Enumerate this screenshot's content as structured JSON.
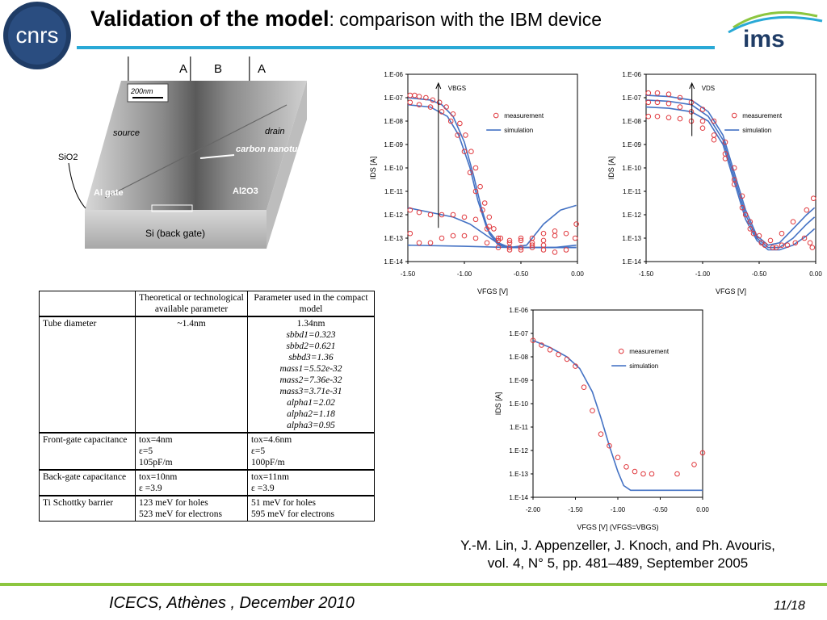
{
  "header": {
    "title_bold": "Validation of the model",
    "title_rest": ": comparison with the IBM device",
    "logo_left_text": "cnrs",
    "logo_right_text": "ims"
  },
  "device": {
    "region_labels": [
      "A",
      "B",
      "A"
    ],
    "scale_bar": "200nm",
    "source": "source",
    "drain": "drain",
    "nanotube": "carbon nanotube",
    "sio2": "SiO2",
    "al_gate": "Al gate",
    "al2o3": "Al2O3",
    "back_gate": "Si (back gate)"
  },
  "table": {
    "headers": [
      "",
      "Theoretical or technological available parameter",
      "Parameter used in the compact model"
    ],
    "rows": [
      {
        "param": "Tube diameter",
        "theory": [
          "~1.4nm"
        ],
        "model": [
          "1.34nm"
        ],
        "model_italic": [
          "sbbd1=0.323",
          "sbbd2=0.621",
          "sbbd3=1.36",
          "mass1=5.52e-32",
          "mass2=7.36e-32",
          "mass3=3.71e-31",
          "alpha1=2.02",
          "alpha2=1.18",
          "alpha3=0.95"
        ]
      },
      {
        "param": "Front-gate capacitance",
        "theory": [
          "tox=4nm",
          "ε=5",
          "105pF/m"
        ],
        "model": [
          "tox=4.6nm",
          "ε=5",
          "100pF/m"
        ]
      },
      {
        "param": "Back-gate capacitance",
        "theory": [
          "tox=10nm",
          "ε =3.9"
        ],
        "model": [
          "tox=11nm",
          "ε =3.9"
        ]
      },
      {
        "param": "Ti Schottky barrier",
        "theory": [
          "123 meV for holes",
          "523 meV for electrons"
        ],
        "model": [
          "51 meV for holes",
          "595 meV for electrons"
        ]
      }
    ]
  },
  "chart_data": [
    {
      "type": "scatter",
      "id": "vbgs",
      "ylabel": "IDS [A]",
      "xlabel": "VFGS [V]",
      "yscale": "log",
      "xlim": [
        -1.5,
        0.0
      ],
      "ylim_exp": [
        -14,
        -6
      ],
      "x_ticks": [
        "-1.50",
        "-1.00",
        "-0.50",
        "0.00"
      ],
      "y_ticks": [
        "1.E-06",
        "1.E-07",
        "1.E-08",
        "1.E-09",
        "1.E-10",
        "1.E-11",
        "1.E-12",
        "1.E-13",
        "1.E-14"
      ],
      "arrow_label": "VBGS",
      "legend": [
        "measurement",
        "simulation"
      ],
      "colors": {
        "measurement": "#e0393e",
        "simulation": "#4472c4"
      },
      "measurement": [
        {
          "x": -1.48,
          "y": -6.9
        },
        {
          "x": -1.44,
          "y": -6.9
        },
        {
          "x": -1.4,
          "y": -6.95
        },
        {
          "x": -1.34,
          "y": -7.0
        },
        {
          "x": -1.28,
          "y": -7.1
        },
        {
          "x": -1.22,
          "y": -7.2
        },
        {
          "x": -1.16,
          "y": -7.4
        },
        {
          "x": -1.1,
          "y": -7.7
        },
        {
          "x": -1.04,
          "y": -8.1
        },
        {
          "x": -0.99,
          "y": -8.6
        },
        {
          "x": -0.94,
          "y": -9.3
        },
        {
          "x": -0.9,
          "y": -10.0
        },
        {
          "x": -0.86,
          "y": -10.8
        },
        {
          "x": -0.82,
          "y": -11.5
        },
        {
          "x": -0.78,
          "y": -12.1
        },
        {
          "x": -0.74,
          "y": -12.6
        },
        {
          "x": -0.68,
          "y": -13.0
        },
        {
          "x": -0.6,
          "y": -13.1
        },
        {
          "x": -0.5,
          "y": -13.0
        },
        {
          "x": -0.4,
          "y": -13.2
        },
        {
          "x": -0.3,
          "y": -13.1
        },
        {
          "x": -0.2,
          "y": -12.9
        },
        {
          "x": -0.1,
          "y": -12.8
        },
        {
          "x": -0.01,
          "y": -12.4
        },
        {
          "x": -1.48,
          "y": -7.2
        },
        {
          "x": -1.4,
          "y": -7.3
        },
        {
          "x": -1.3,
          "y": -7.4
        },
        {
          "x": -1.2,
          "y": -7.6
        },
        {
          "x": -1.12,
          "y": -8.0
        },
        {
          "x": -1.06,
          "y": -8.6
        },
        {
          "x": -1.0,
          "y": -9.3
        },
        {
          "x": -0.95,
          "y": -10.2
        },
        {
          "x": -0.9,
          "y": -11.0
        },
        {
          "x": -0.84,
          "y": -11.8
        },
        {
          "x": -0.78,
          "y": -12.5
        },
        {
          "x": -0.7,
          "y": -13.1
        },
        {
          "x": -0.6,
          "y": -13.4
        },
        {
          "x": -0.5,
          "y": -13.5
        },
        {
          "x": -0.4,
          "y": -13.4
        },
        {
          "x": -0.3,
          "y": -13.5
        },
        {
          "x": -0.2,
          "y": -13.6
        },
        {
          "x": -0.1,
          "y": -13.5
        },
        {
          "x": -0.02,
          "y": -13.0
        },
        {
          "x": -1.48,
          "y": -11.8
        },
        {
          "x": -1.4,
          "y": -11.9
        },
        {
          "x": -1.3,
          "y": -12.0
        },
        {
          "x": -1.2,
          "y": -12.0
        },
        {
          "x": -1.1,
          "y": -12.0
        },
        {
          "x": -1.0,
          "y": -12.1
        },
        {
          "x": -0.9,
          "y": -12.2
        },
        {
          "x": -0.8,
          "y": -12.6
        },
        {
          "x": -0.7,
          "y": -13.0
        },
        {
          "x": -0.6,
          "y": -13.2
        },
        {
          "x": -0.5,
          "y": -13.1
        },
        {
          "x": -0.4,
          "y": -13.0
        },
        {
          "x": -0.3,
          "y": -12.8
        },
        {
          "x": -0.2,
          "y": -12.7
        },
        {
          "x": -1.48,
          "y": -12.8
        },
        {
          "x": -1.4,
          "y": -13.2
        },
        {
          "x": -1.3,
          "y": -13.2
        },
        {
          "x": -1.2,
          "y": -13.0
        },
        {
          "x": -1.1,
          "y": -12.9
        },
        {
          "x": -1.0,
          "y": -12.9
        },
        {
          "x": -0.9,
          "y": -13.0
        },
        {
          "x": -0.8,
          "y": -13.2
        },
        {
          "x": -0.7,
          "y": -13.4
        },
        {
          "x": -0.6,
          "y": -13.5
        },
        {
          "x": -0.5,
          "y": -13.4
        },
        {
          "x": -0.4,
          "y": -13.3
        },
        {
          "x": -0.3,
          "y": -13.3
        }
      ],
      "simulation": [
        [
          {
            "x": -1.5,
            "y": -7.0
          },
          {
            "x": -1.3,
            "y": -7.1
          },
          {
            "x": -1.2,
            "y": -7.3
          },
          {
            "x": -1.1,
            "y": -7.8
          },
          {
            "x": -1.0,
            "y": -8.9
          },
          {
            "x": -0.92,
            "y": -10.3
          },
          {
            "x": -0.85,
            "y": -11.7
          },
          {
            "x": -0.78,
            "y": -12.8
          },
          {
            "x": -0.7,
            "y": -13.3
          },
          {
            "x": -0.6,
            "y": -13.4
          },
          {
            "x": -0.45,
            "y": -13.3
          },
          {
            "x": -0.3,
            "y": -12.4
          },
          {
            "x": -0.15,
            "y": -11.8
          },
          {
            "x": -0.01,
            "y": -11.6
          }
        ],
        [
          {
            "x": -1.5,
            "y": -7.3
          },
          {
            "x": -1.3,
            "y": -7.4
          },
          {
            "x": -1.15,
            "y": -7.8
          },
          {
            "x": -1.05,
            "y": -8.6
          },
          {
            "x": -0.95,
            "y": -10.0
          },
          {
            "x": -0.88,
            "y": -11.4
          },
          {
            "x": -0.8,
            "y": -12.6
          },
          {
            "x": -0.7,
            "y": -13.2
          },
          {
            "x": -0.6,
            "y": -13.4
          },
          {
            "x": -0.4,
            "y": -13.4
          },
          {
            "x": -0.2,
            "y": -13.4
          },
          {
            "x": -0.01,
            "y": -13.3
          }
        ],
        [
          {
            "x": -1.5,
            "y": -11.7
          },
          {
            "x": -1.3,
            "y": -11.9
          },
          {
            "x": -1.1,
            "y": -12.1
          },
          {
            "x": -0.95,
            "y": -12.4
          },
          {
            "x": -0.8,
            "y": -12.9
          },
          {
            "x": -0.68,
            "y": -13.3
          },
          {
            "x": -0.55,
            "y": -13.4
          },
          {
            "x": -0.4,
            "y": -13.4
          },
          {
            "x": -0.2,
            "y": -13.4
          },
          {
            "x": -0.01,
            "y": -13.4
          }
        ],
        [
          {
            "x": -1.5,
            "y": -13.3
          },
          {
            "x": -1.0,
            "y": -13.35
          },
          {
            "x": -0.6,
            "y": -13.4
          },
          {
            "x": -0.3,
            "y": -13.4
          },
          {
            "x": -0.01,
            "y": -13.4
          }
        ]
      ]
    },
    {
      "type": "scatter",
      "id": "vds",
      "ylabel": "IDS [A]",
      "xlabel": "VFGS [V]",
      "yscale": "log",
      "xlim": [
        -1.5,
        0.0
      ],
      "ylim_exp": [
        -14,
        -6
      ],
      "x_ticks": [
        "-1.50",
        "-1.00",
        "-0.50",
        "0.00"
      ],
      "y_ticks": [
        "1.E-06",
        "1.E-07",
        "1.E-08",
        "1.E-09",
        "1.E-10",
        "1.E-11",
        "1.E-12",
        "1.E-13",
        "1.E-14"
      ],
      "arrow_label": "VDS",
      "legend": [
        "measurement",
        "simulation"
      ],
      "colors": {
        "measurement": "#e0393e",
        "simulation": "#4472c4"
      },
      "measurement": [
        {
          "x": -1.48,
          "y": -6.8
        },
        {
          "x": -1.4,
          "y": -6.8
        },
        {
          "x": -1.3,
          "y": -6.85
        },
        {
          "x": -1.2,
          "y": -7.0
        },
        {
          "x": -1.1,
          "y": -7.2
        },
        {
          "x": -1.0,
          "y": -7.5
        },
        {
          "x": -0.9,
          "y": -8.0
        },
        {
          "x": -0.8,
          "y": -8.9
        },
        {
          "x": -0.72,
          "y": -10.0
        },
        {
          "x": -0.65,
          "y": -11.2
        },
        {
          "x": -0.58,
          "y": -12.3
        },
        {
          "x": -0.5,
          "y": -12.9
        },
        {
          "x": -0.4,
          "y": -13.1
        },
        {
          "x": -0.3,
          "y": -12.8
        },
        {
          "x": -0.2,
          "y": -12.3
        },
        {
          "x": -0.08,
          "y": -11.8
        },
        {
          "x": -0.02,
          "y": -11.3
        },
        {
          "x": -1.48,
          "y": -7.2
        },
        {
          "x": -1.4,
          "y": -7.2
        },
        {
          "x": -1.3,
          "y": -7.25
        },
        {
          "x": -1.2,
          "y": -7.4
        },
        {
          "x": -1.1,
          "y": -7.6
        },
        {
          "x": -1.0,
          "y": -8.0
        },
        {
          "x": -0.9,
          "y": -8.6
        },
        {
          "x": -0.8,
          "y": -9.4
        },
        {
          "x": -0.72,
          "y": -10.5
        },
        {
          "x": -0.65,
          "y": -11.7
        },
        {
          "x": -0.58,
          "y": -12.6
        },
        {
          "x": -0.48,
          "y": -13.2
        },
        {
          "x": -0.38,
          "y": -13.4
        },
        {
          "x": -0.3,
          "y": -13.3
        },
        {
          "x": -0.18,
          "y": -13.2
        },
        {
          "x": -0.05,
          "y": -13.2
        },
        {
          "x": -1.48,
          "y": -7.8
        },
        {
          "x": -1.4,
          "y": -7.8
        },
        {
          "x": -1.3,
          "y": -7.85
        },
        {
          "x": -1.2,
          "y": -7.9
        },
        {
          "x": -1.1,
          "y": -8.0
        },
        {
          "x": -1.0,
          "y": -8.3
        },
        {
          "x": -0.9,
          "y": -8.8
        },
        {
          "x": -0.8,
          "y": -9.6
        },
        {
          "x": -0.72,
          "y": -10.7
        },
        {
          "x": -0.62,
          "y": -12.0
        },
        {
          "x": -0.55,
          "y": -12.8
        },
        {
          "x": -0.45,
          "y": -13.3
        },
        {
          "x": -0.35,
          "y": -13.4
        },
        {
          "x": -0.25,
          "y": -13.3
        },
        {
          "x": -0.1,
          "y": -13.0
        },
        {
          "x": -0.03,
          "y": -13.4
        }
      ],
      "simulation": [
        [
          {
            "x": -1.5,
            "y": -6.9
          },
          {
            "x": -1.3,
            "y": -6.95
          },
          {
            "x": -1.1,
            "y": -7.1
          },
          {
            "x": -0.95,
            "y": -7.6
          },
          {
            "x": -0.82,
            "y": -8.6
          },
          {
            "x": -0.72,
            "y": -10.2
          },
          {
            "x": -0.62,
            "y": -11.8
          },
          {
            "x": -0.52,
            "y": -12.9
          },
          {
            "x": -0.42,
            "y": -13.3
          },
          {
            "x": -0.32,
            "y": -13.2
          },
          {
            "x": -0.2,
            "y": -12.6
          },
          {
            "x": -0.08,
            "y": -12.0
          },
          {
            "x": -0.01,
            "y": -11.7
          }
        ],
        [
          {
            "x": -1.5,
            "y": -7.1
          },
          {
            "x": -1.3,
            "y": -7.15
          },
          {
            "x": -1.1,
            "y": -7.3
          },
          {
            "x": -0.95,
            "y": -7.8
          },
          {
            "x": -0.82,
            "y": -8.8
          },
          {
            "x": -0.72,
            "y": -10.4
          },
          {
            "x": -0.62,
            "y": -12.0
          },
          {
            "x": -0.52,
            "y": -13.0
          },
          {
            "x": -0.42,
            "y": -13.4
          },
          {
            "x": -0.32,
            "y": -13.4
          },
          {
            "x": -0.2,
            "y": -13.0
          },
          {
            "x": -0.08,
            "y": -12.4
          },
          {
            "x": -0.01,
            "y": -12.1
          }
        ],
        [
          {
            "x": -1.5,
            "y": -7.4
          },
          {
            "x": -1.3,
            "y": -7.45
          },
          {
            "x": -1.1,
            "y": -7.6
          },
          {
            "x": -0.95,
            "y": -8.0
          },
          {
            "x": -0.82,
            "y": -9.0
          },
          {
            "x": -0.72,
            "y": -10.6
          },
          {
            "x": -0.62,
            "y": -12.2
          },
          {
            "x": -0.52,
            "y": -13.1
          },
          {
            "x": -0.42,
            "y": -13.5
          },
          {
            "x": -0.32,
            "y": -13.5
          },
          {
            "x": -0.2,
            "y": -13.3
          },
          {
            "x": -0.08,
            "y": -12.9
          },
          {
            "x": -0.01,
            "y": -12.6
          }
        ]
      ]
    },
    {
      "type": "scatter",
      "id": "vfgs",
      "ylabel": "IDS [A]",
      "xlabel": "VFGS [V] (VFGS=VBGS)",
      "yscale": "log",
      "xlim": [
        -2.0,
        0.0
      ],
      "ylim_exp": [
        -14,
        -6
      ],
      "x_ticks": [
        "-2.00",
        "-1.50",
        "-1.00",
        "-0.50",
        "0.00"
      ],
      "y_ticks": [
        "1.E-06",
        "1.E-07",
        "1.E-08",
        "1.E-09",
        "1.E-10",
        "1.E-11",
        "1.E-12",
        "1.E-13",
        "1.E-14"
      ],
      "legend": [
        "measurement",
        "simulation"
      ],
      "colors": {
        "measurement": "#e0393e",
        "simulation": "#4472c4"
      },
      "measurement": [
        {
          "x": -2.0,
          "y": -7.3
        },
        {
          "x": -1.9,
          "y": -7.5
        },
        {
          "x": -1.8,
          "y": -7.7
        },
        {
          "x": -1.7,
          "y": -7.9
        },
        {
          "x": -1.6,
          "y": -8.1
        },
        {
          "x": -1.5,
          "y": -8.4
        },
        {
          "x": -1.4,
          "y": -9.3
        },
        {
          "x": -1.3,
          "y": -10.3
        },
        {
          "x": -1.2,
          "y": -11.3
        },
        {
          "x": -1.1,
          "y": -11.8
        },
        {
          "x": -1.0,
          "y": -12.3
        },
        {
          "x": -0.9,
          "y": -12.7
        },
        {
          "x": -0.8,
          "y": -12.9
        },
        {
          "x": -0.7,
          "y": -13.0
        },
        {
          "x": -0.6,
          "y": -13.0
        },
        {
          "x": -0.3,
          "y": -13.0
        },
        {
          "x": -0.1,
          "y": -12.6
        },
        {
          "x": 0.0,
          "y": -12.1
        }
      ],
      "simulation": [
        [
          {
            "x": -2.0,
            "y": -7.3
          },
          {
            "x": -1.8,
            "y": -7.6
          },
          {
            "x": -1.6,
            "y": -8.0
          },
          {
            "x": -1.45,
            "y": -8.5
          },
          {
            "x": -1.3,
            "y": -9.5
          },
          {
            "x": -1.2,
            "y": -10.6
          },
          {
            "x": -1.1,
            "y": -11.8
          },
          {
            "x": -1.0,
            "y": -12.9
          },
          {
            "x": -0.93,
            "y": -13.5
          },
          {
            "x": -0.85,
            "y": -13.7
          },
          {
            "x": -0.6,
            "y": -13.7
          },
          {
            "x": -0.3,
            "y": -13.7
          },
          {
            "x": 0.0,
            "y": -13.7
          }
        ]
      ]
    }
  ],
  "reference": {
    "line1": "Y.-M. Lin, J. Appenzeller, J. Knoch, and Ph. Avouris,",
    "line2": "vol. 4, N° 5, pp. 481–489, September 2005"
  },
  "footer": {
    "event": "ICECS, Athènes , December 2010",
    "page": "11/18"
  }
}
